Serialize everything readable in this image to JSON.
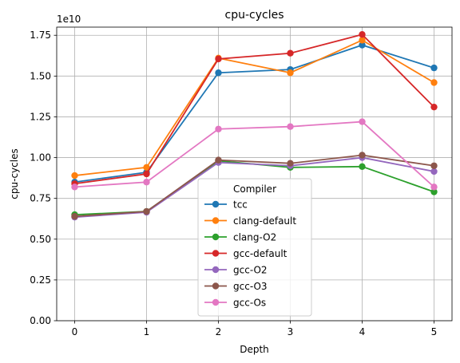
{
  "chart_data": {
    "type": "line",
    "title": "cpu-cycles",
    "xlabel": "Depth",
    "ylabel": "cpu-cycles",
    "offset_label": "1e10",
    "x": [
      0,
      1,
      2,
      3,
      4,
      5
    ],
    "x_ticks": [
      "0",
      "1",
      "2",
      "3",
      "4",
      "5"
    ],
    "y_ticks": [
      "0.00",
      "0.25",
      "0.50",
      "0.75",
      "1.00",
      "1.25",
      "1.50",
      "1.75"
    ],
    "xlim": [
      -0.25,
      5.25
    ],
    "ylim": [
      0,
      1.8
    ],
    "grid": true,
    "legend": {
      "title": "Compiler",
      "placement": "lower center"
    },
    "series": [
      {
        "name": "tcc",
        "color": "#1f77b4",
        "values": [
          0.85,
          0.91,
          1.52,
          1.54,
          1.69,
          1.55
        ]
      },
      {
        "name": "clang-default",
        "color": "#ff7f0e",
        "values": [
          0.89,
          0.94,
          1.61,
          1.52,
          1.72,
          1.46
        ]
      },
      {
        "name": "clang-O2",
        "color": "#2ca02c",
        "values": [
          0.65,
          0.67,
          0.98,
          0.94,
          0.945,
          0.79
        ]
      },
      {
        "name": "gcc-default",
        "color": "#d62728",
        "values": [
          0.84,
          0.9,
          1.605,
          1.64,
          1.755,
          1.31
        ]
      },
      {
        "name": "gcc-O2",
        "color": "#9467bd",
        "values": [
          0.635,
          0.665,
          0.97,
          0.95,
          1.0,
          0.915
        ]
      },
      {
        "name": "gcc-O3",
        "color": "#8c564b",
        "values": [
          0.64,
          0.67,
          0.985,
          0.965,
          1.015,
          0.95
        ]
      },
      {
        "name": "gcc-Os",
        "color": "#e377c2",
        "values": [
          0.82,
          0.85,
          1.175,
          1.19,
          1.22,
          0.82
        ]
      }
    ]
  }
}
